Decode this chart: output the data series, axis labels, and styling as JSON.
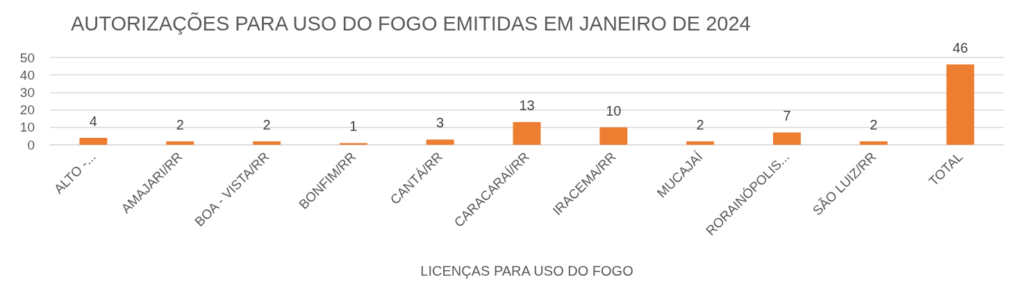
{
  "chart_data": {
    "type": "bar",
    "title": "AUTORIZAÇÕES PARA USO DO FOGO EMITIDAS EM JANEIRO DE 2024",
    "xlabel": "LICENÇAS PARA USO DO FOGO",
    "categories": [
      "ALTO -...",
      "AMAJARI/RR",
      "BOA - VISTA/RR",
      "BONFIM/RR",
      "CANTÁ/RR",
      "CARACARAÍ/RR",
      "IRACEMA/RR",
      "MUCAJAÍ",
      "RORAINÓPOLIS...",
      "SÃO LUIZ/RR",
      "TOTAL"
    ],
    "values": [
      4,
      2,
      2,
      1,
      3,
      13,
      10,
      2,
      7,
      2,
      46
    ],
    "color": "#ed7d31",
    "ylim": [
      0,
      50
    ],
    "yticks": [
      0,
      10,
      20,
      30,
      40,
      50
    ],
    "grid": "y",
    "data_labels": true
  }
}
